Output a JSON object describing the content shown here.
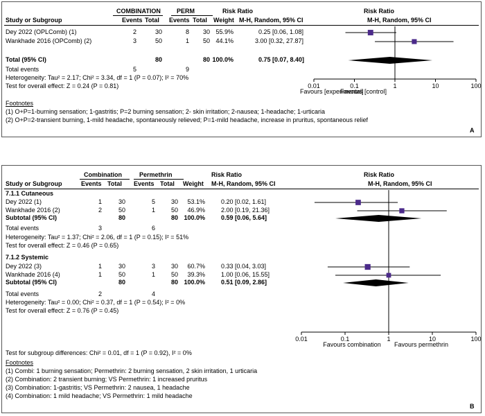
{
  "colors": {
    "marker": "#4b2a8a",
    "line": "#000000",
    "border": "#555555"
  },
  "panelA": {
    "letter": "A",
    "group1": "COMBINATION",
    "group2": "PERM",
    "colStudy": "Study or Subgroup",
    "colEvents": "Events",
    "colTotal": "Total",
    "colWeight": "Weight",
    "rrTitle": "Risk Ratio",
    "rrMethod": "M-H, Random, 95% CI",
    "plotTitle": "Risk Ratio",
    "plotMethod": "M-H, Random, 95% CI",
    "rows": [
      {
        "study": "Dey 2022 (OPLComb) (1)",
        "e1": "2",
        "t1": "30",
        "e2": "8",
        "t2": "30",
        "w": "55.9%",
        "ci": "0.25 [0.06, 1.08]"
      },
      {
        "study": "Wankhade 2016 (OPComb) (2)",
        "e1": "3",
        "t1": "50",
        "e2": "1",
        "t2": "50",
        "w": "44.1%",
        "ci": "3.00 [0.32, 27.87]"
      }
    ],
    "total": {
      "label": "Total (95% CI)",
      "t1": "80",
      "t2": "80",
      "w": "100.0%",
      "ci": "0.75 [0.07, 8.40]"
    },
    "totalEvents": {
      "label": "Total events",
      "e1": "5",
      "e2": "9"
    },
    "heterogeneity": "Heterogeneity: Tau² = 2.17; Chi² = 3.34, df = 1 (P = 0.07); I² = 70%",
    "overall": "Test for overall effect: Z = 0.24 (P = 0.81)",
    "ticks": [
      "0.01",
      "0.1",
      "1",
      "10",
      "100"
    ],
    "favLeft": "Favours [experimental]",
    "favRight": "Favours [control]",
    "footTitle": "Footnotes",
    "footnotes": [
      "(1) O+P=1-burning sensation; 1-gastritis; P=2 burning sensation; 2- skin irritation; 2-nausea; 1-headache; 1-urticaria",
      "(2) O+P=2-transient burning, 1-mild headache, spontaneously relieved; P=1-mild headache, increase in pruritus, spontaneous relief"
    ]
  },
  "panelB": {
    "letter": "B",
    "group1": "Combination",
    "group2": "Permethrin",
    "colStudy": "Study or Subgroup",
    "colEvents": "Events",
    "colTotal": "Total",
    "colWeight": "Weight",
    "rrTitle": "Risk Ratio",
    "rrMethod": "M-H, Random, 95% CI",
    "plotTitle": "Risk Ratio",
    "plotMethod": "M-H, Random, 95% CI",
    "sub1": {
      "title": "7.1.1 Cutaneous",
      "rows": [
        {
          "study": "Dey 2022 (1)",
          "e1": "1",
          "t1": "30",
          "e2": "5",
          "t2": "30",
          "w": "53.1%",
          "ci": "0.20 [0.02, 1.61]"
        },
        {
          "study": "Wankhade 2016 (2)",
          "e1": "2",
          "t1": "50",
          "e2": "1",
          "t2": "50",
          "w": "46.9%",
          "ci": "2.00 [0.19, 21.36]"
        }
      ],
      "subtotal": {
        "label": "Subtotal (95% CI)",
        "t1": "80",
        "t2": "80",
        "w": "100.0%",
        "ci": "0.59 [0.06, 5.64]"
      },
      "totalEvents": {
        "label": "Total events",
        "e1": "3",
        "e2": "6"
      },
      "heterogeneity": "Heterogeneity: Tau² = 1.37; Chi² = 2.06, df = 1 (P = 0.15); I² = 51%",
      "overall": "Test for overall effect: Z = 0.46 (P = 0.65)"
    },
    "sub2": {
      "title": "7.1.2 Systemic",
      "rows": [
        {
          "study": "Dey 2022 (3)",
          "e1": "1",
          "t1": "30",
          "e2": "3",
          "t2": "30",
          "w": "60.7%",
          "ci": "0.33 [0.04, 3.03]"
        },
        {
          "study": "Wankhade 2016 (4)",
          "e1": "1",
          "t1": "50",
          "e2": "1",
          "t2": "50",
          "w": "39.3%",
          "ci": "1.00 [0.06, 15.55]"
        }
      ],
      "subtotal": {
        "label": "Subtotal (95% CI)",
        "t1": "80",
        "t2": "80",
        "w": "100.0%",
        "ci": "0.51 [0.09, 2.86]"
      },
      "totalEvents": {
        "label": "Total events",
        "e1": "2",
        "e2": "4"
      },
      "heterogeneity": "Heterogeneity: Tau² = 0.00; Chi² = 0.37, df = 1 (P = 0.54); I² = 0%",
      "overall": "Test for overall effect: Z = 0.76 (P = 0.45)"
    },
    "subgroupDiff": "Test for subgroup differences: Chi² = 0.01, df = 1 (P = 0.92), I² = 0%",
    "ticks": [
      "0.01",
      "0.1",
      "1",
      "10",
      "100"
    ],
    "favLeft": "Favours combination",
    "favRight": "Favours permethrin",
    "footTitle": "Footnotes",
    "footnotes": [
      "(1) Combi: 1 burning sensation; Permethrin: 2 burning sensation, 2 skin irritation, 1 urticaria",
      "(2) Combination: 2 transient burning; VS Permethrin: 1 increased pruritus",
      "(3) Combination: 1-gastritis; VS Permethrin: 2 nausea, 1 headache",
      "(4) Combination: 1 mild headache; VS Permethrin: 1 mild headache"
    ]
  },
  "chart_data": [
    {
      "type": "forest",
      "panel": "A",
      "scale": "log",
      "xlim": [
        0.01,
        100
      ],
      "xticks": [
        0.01,
        0.1,
        1,
        10,
        100
      ],
      "studies": [
        {
          "name": "Dey 2022 (OPLComb)",
          "rr": 0.25,
          "lo": 0.06,
          "hi": 1.08,
          "weight": 55.9
        },
        {
          "name": "Wankhade 2016 (OPComb)",
          "rr": 3.0,
          "lo": 0.32,
          "hi": 27.87,
          "weight": 44.1
        }
      ],
      "pooled": {
        "rr": 0.75,
        "lo": 0.07,
        "hi": 8.4
      }
    },
    {
      "type": "forest",
      "panel": "B",
      "scale": "log",
      "xlim": [
        0.01,
        100
      ],
      "xticks": [
        0.01,
        0.1,
        1,
        10,
        100
      ],
      "subgroups": [
        {
          "name": "7.1.1 Cutaneous",
          "studies": [
            {
              "name": "Dey 2022",
              "rr": 0.2,
              "lo": 0.02,
              "hi": 1.61,
              "weight": 53.1
            },
            {
              "name": "Wankhade 2016",
              "rr": 2.0,
              "lo": 0.19,
              "hi": 21.36,
              "weight": 46.9
            }
          ],
          "pooled": {
            "rr": 0.59,
            "lo": 0.06,
            "hi": 5.64
          }
        },
        {
          "name": "7.1.2 Systemic",
          "studies": [
            {
              "name": "Dey 2022",
              "rr": 0.33,
              "lo": 0.04,
              "hi": 3.03,
              "weight": 60.7
            },
            {
              "name": "Wankhade 2016",
              "rr": 1.0,
              "lo": 0.06,
              "hi": 15.55,
              "weight": 39.3
            }
          ],
          "pooled": {
            "rr": 0.51,
            "lo": 0.09,
            "hi": 2.86
          }
        }
      ]
    }
  ]
}
